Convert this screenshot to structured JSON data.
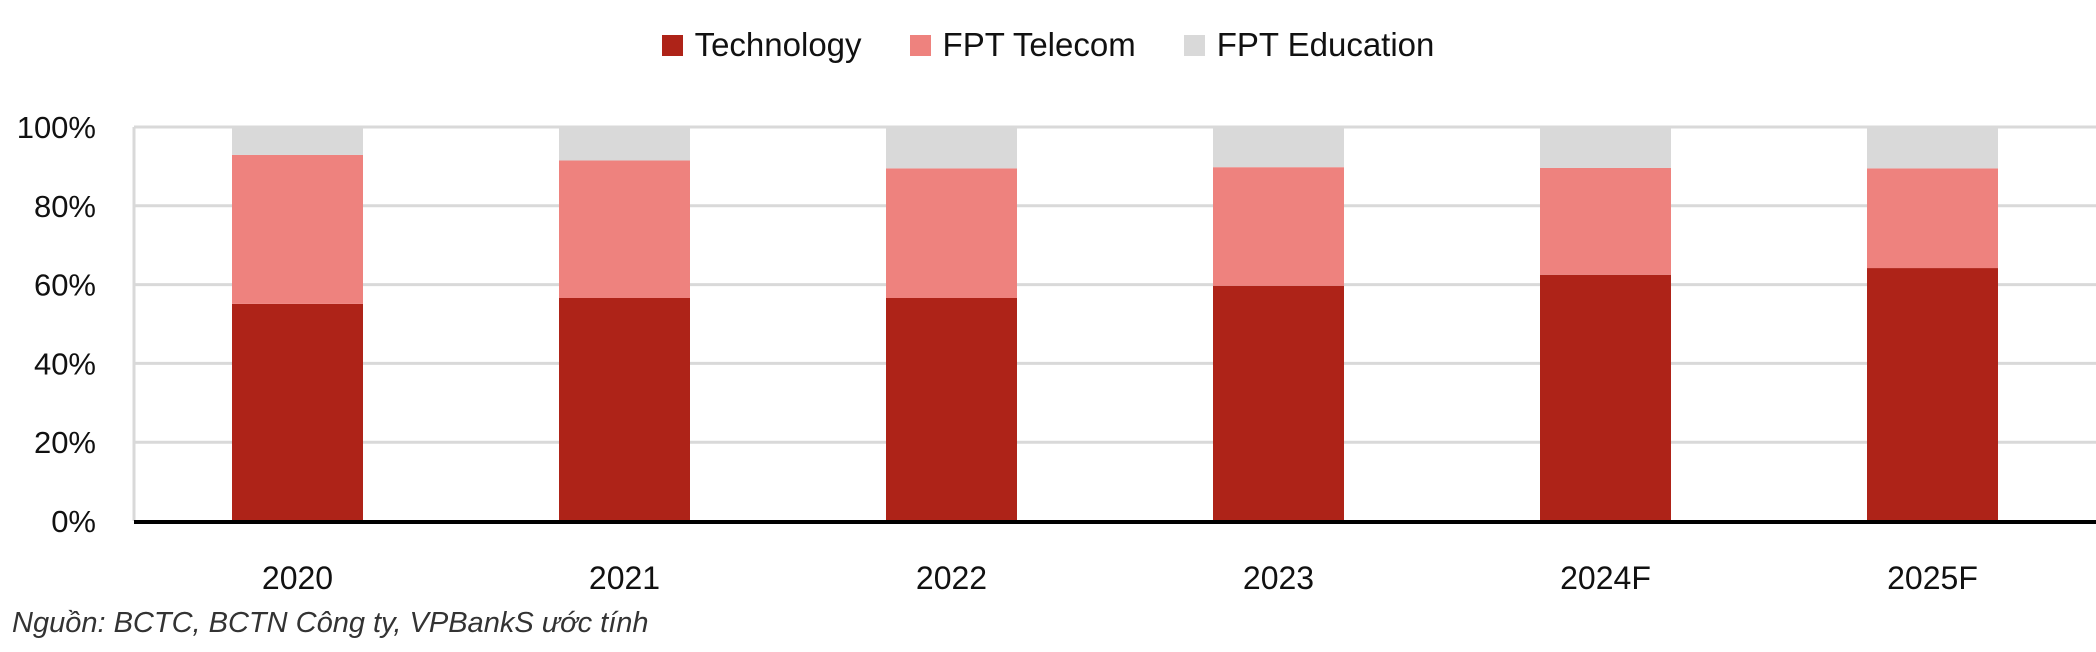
{
  "chart_data": {
    "type": "bar",
    "stacked": true,
    "categories": [
      "2020",
      "2021",
      "2022",
      "2023",
      "2024F",
      "2025F"
    ],
    "series": [
      {
        "name": "Technology",
        "color": "#ae2318",
        "values": [
          55.1,
          56.6,
          56.6,
          59.7,
          62.5,
          64.2
        ]
      },
      {
        "name": "FPT Telecom",
        "color": "#ee827e",
        "values": [
          37.8,
          34.9,
          32.9,
          30.1,
          27.1,
          25.3
        ]
      },
      {
        "name": "FPT Education",
        "color": "#d9d9d9",
        "values": [
          7.1,
          8.5,
          10.5,
          10.2,
          10.4,
          10.5
        ]
      }
    ],
    "yticks": [
      "0%",
      "20%",
      "40%",
      "60%",
      "80%",
      "100%"
    ],
    "ylim": [
      0,
      100
    ],
    "grid": true,
    "legend_position": "top-center",
    "title": "",
    "xlabel": "",
    "ylabel": ""
  },
  "source": "Nguồn: BCTC, BCTN Công ty, VPBankS ước tính"
}
